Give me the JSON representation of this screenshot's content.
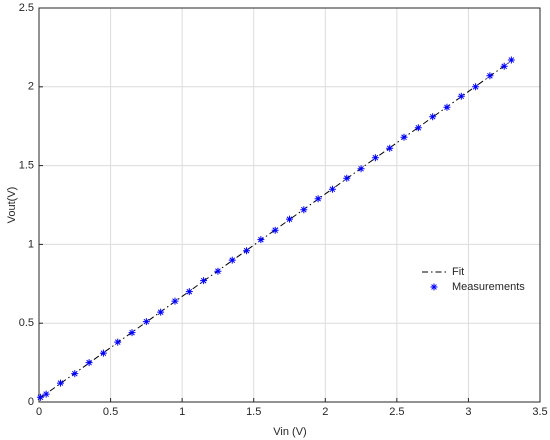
{
  "chart_data": {
    "type": "line",
    "xlabel": "Vin (V)",
    "ylabel": "Vout(V)",
    "series": [
      {
        "name": "Fit",
        "color": "#000000",
        "linestyle": "dashdot",
        "marker": "none",
        "x": [
          0,
          3.3
        ],
        "values": [
          0.02,
          2.165
        ]
      },
      {
        "name": "Measurements",
        "color": "#0000ff",
        "linestyle": "none",
        "marker": "asterisk",
        "x": [
          0.01,
          0.05,
          0.15,
          0.25,
          0.35,
          0.45,
          0.55,
          0.65,
          0.75,
          0.85,
          0.95,
          1.05,
          1.15,
          1.25,
          1.35,
          1.45,
          1.55,
          1.65,
          1.75,
          1.85,
          1.95,
          2.05,
          2.15,
          2.25,
          2.35,
          2.45,
          2.55,
          2.65,
          2.75,
          2.85,
          2.95,
          3.05,
          3.15,
          3.25,
          3.3
        ],
        "values": [
          0.03,
          0.05,
          0.12,
          0.18,
          0.25,
          0.31,
          0.38,
          0.44,
          0.51,
          0.57,
          0.64,
          0.7,
          0.77,
          0.83,
          0.9,
          0.96,
          1.03,
          1.09,
          1.16,
          1.22,
          1.29,
          1.35,
          1.42,
          1.48,
          1.55,
          1.61,
          1.68,
          1.74,
          1.81,
          1.87,
          1.94,
          2.0,
          2.07,
          2.13,
          2.17
        ]
      }
    ],
    "xlim": [
      0,
      3.5
    ],
    "xticks": [
      0,
      0.5,
      1,
      1.5,
      2,
      2.5,
      3,
      3.5
    ],
    "ylim": [
      0,
      2.5
    ],
    "yticks": [
      0,
      0.5,
      1,
      1.5,
      2,
      2.5
    ],
    "grid": true,
    "legend": "right"
  }
}
